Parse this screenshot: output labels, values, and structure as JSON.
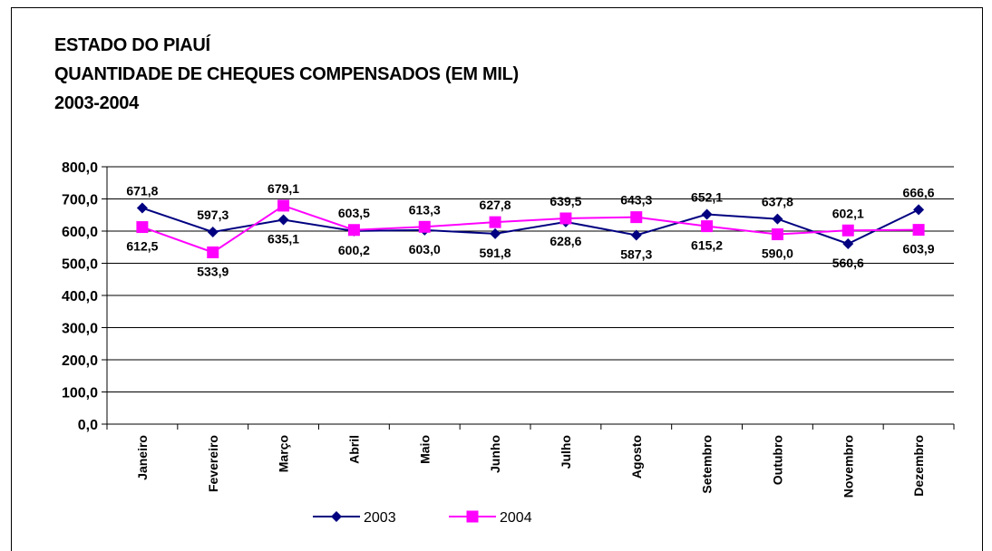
{
  "title_lines": [
    "ESTADO DO PIAUÍ",
    "QUANTIDADE DE CHEQUES COMPENSADOS (EM MIL)",
    "2003-2004"
  ],
  "colors": {
    "s2003": "#000080",
    "s2004": "#ff00ff"
  },
  "chart_data": {
    "type": "line",
    "title": "ESTADO DO PIAUÍ QUANTIDADE DE CHEQUES COMPENSADOS (EM MIL) 2003-2004",
    "categories": [
      "Janeiro",
      "Fevereiro",
      "Março",
      "Abril",
      "Maio",
      "Junho",
      "Julho",
      "Agosto",
      "Setembro",
      "Outubro",
      "Novembro",
      "Dezembro"
    ],
    "y_ticks": [
      "0,0",
      "100,0",
      "200,0",
      "300,0",
      "400,0",
      "500,0",
      "600,0",
      "700,0",
      "800,0"
    ],
    "ylim": [
      0,
      800
    ],
    "grid": true,
    "legend_position": "bottom",
    "series": [
      {
        "name": "2003",
        "marker": "diamond",
        "values": [
          671.8,
          597.3,
          635.1,
          600.2,
          603.0,
          591.8,
          628.6,
          587.3,
          652.1,
          637.8,
          560.6,
          666.6
        ],
        "labels": [
          "671,8",
          "597,3",
          "635,1",
          "600,2",
          "603,0",
          "591,8",
          "628,6",
          "587,3",
          "652,1",
          "637,8",
          "560,6",
          "666,6"
        ]
      },
      {
        "name": "2004",
        "marker": "square",
        "values": [
          612.5,
          533.9,
          679.1,
          603.5,
          613.3,
          627.8,
          639.5,
          643.3,
          615.2,
          590.0,
          602.1,
          603.9
        ],
        "labels": [
          "612,5",
          "533,9",
          "679,1",
          "603,5",
          "613,3",
          "627,8",
          "639,5",
          "643,3",
          "615,2",
          "590,0",
          "602,1",
          "603,9"
        ]
      }
    ]
  }
}
